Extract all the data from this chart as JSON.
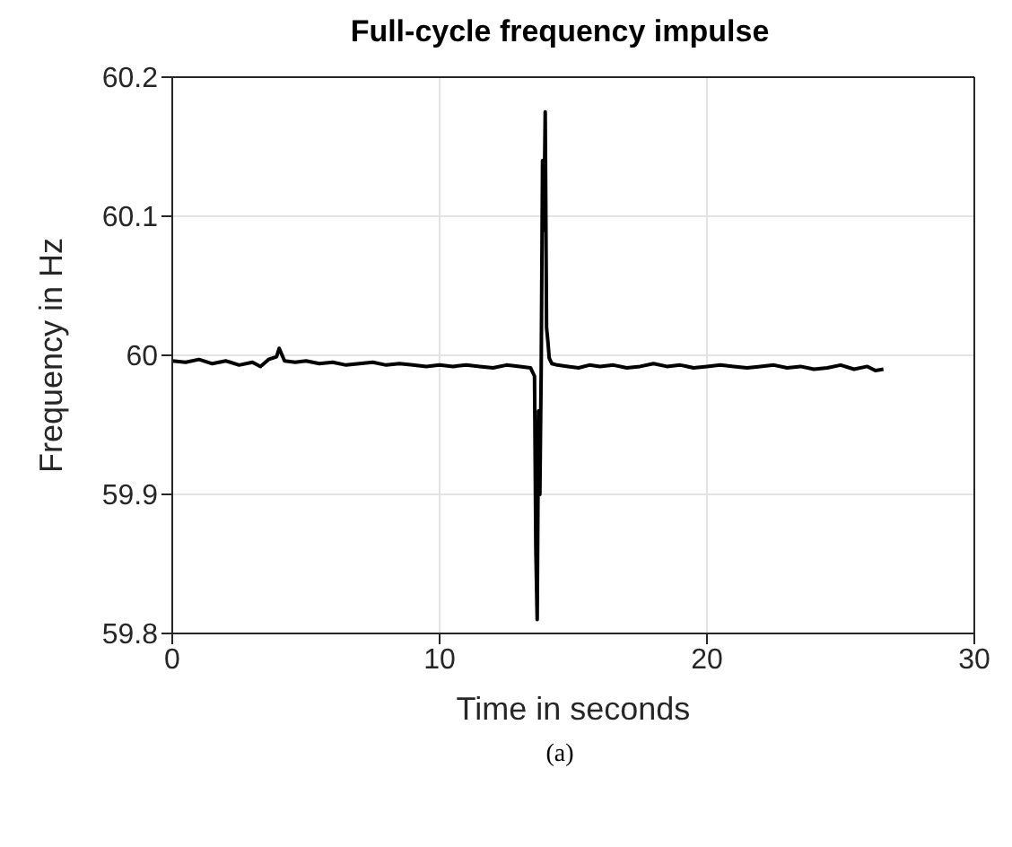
{
  "chart_data": {
    "type": "line",
    "title": "Full-cycle frequency impulse",
    "xlabel": "Time in seconds",
    "ylabel": "Frequency in Hz",
    "annotations": [
      "(a)"
    ],
    "grid": true,
    "marker": "none",
    "line_style": "solid",
    "xlim": [
      0,
      30
    ],
    "ylim": [
      59.8,
      60.2
    ],
    "xticks": [
      0,
      10,
      20,
      30
    ],
    "yticks": [
      59.8,
      59.9,
      60,
      60.1,
      60.2
    ],
    "series": [
      {
        "color": "#000000",
        "x": [
          0,
          0.5,
          1,
          1.5,
          2,
          2.5,
          3,
          3.3,
          3.6,
          3.9,
          4.0,
          4.2,
          4.6,
          5,
          5.5,
          6,
          6.5,
          7,
          7.5,
          8,
          8.5,
          9,
          9.5,
          10,
          10.5,
          11,
          11.5,
          12,
          12.5,
          13,
          13.4,
          13.55,
          13.6,
          13.65,
          13.7,
          13.75,
          13.8,
          13.85,
          13.9,
          13.95,
          14.0,
          14.05,
          14.1,
          14.2,
          14.4,
          14.8,
          15.2,
          15.6,
          16,
          16.5,
          17,
          17.5,
          18,
          18.5,
          19,
          19.5,
          20,
          20.5,
          21,
          21.5,
          22,
          22.5,
          23,
          23.5,
          24,
          24.5,
          25,
          25.5,
          26,
          26.3,
          26.6
        ],
        "values": [
          59.996,
          59.995,
          59.997,
          59.994,
          59.996,
          59.993,
          59.995,
          59.992,
          59.997,
          59.999,
          60.005,
          59.996,
          59.995,
          59.996,
          59.994,
          59.995,
          59.993,
          59.994,
          59.995,
          59.993,
          59.994,
          59.993,
          59.992,
          59.993,
          59.992,
          59.993,
          59.992,
          59.991,
          59.993,
          59.992,
          59.991,
          59.985,
          59.86,
          59.81,
          59.96,
          59.9,
          59.99,
          60.14,
          60.09,
          60.175,
          60.02,
          60.01,
          59.998,
          59.994,
          59.993,
          59.992,
          59.991,
          59.993,
          59.992,
          59.993,
          59.991,
          59.992,
          59.994,
          59.992,
          59.993,
          59.991,
          59.992,
          59.993,
          59.992,
          59.991,
          59.992,
          59.993,
          59.991,
          59.992,
          59.99,
          59.991,
          59.993,
          59.99,
          59.992,
          59.989,
          59.99
        ]
      }
    ]
  }
}
